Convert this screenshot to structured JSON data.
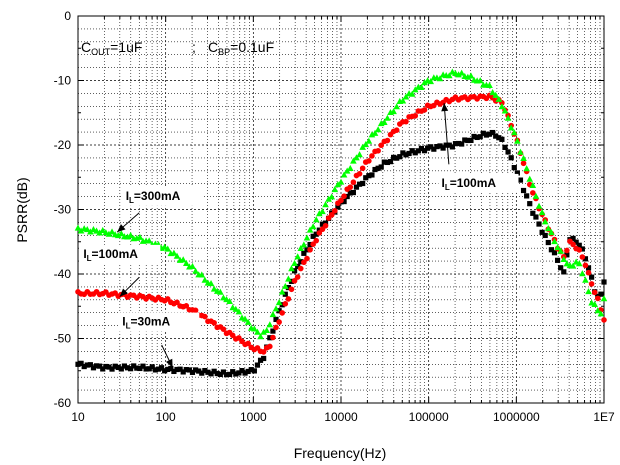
{
  "chart_data": {
    "type": "scatter",
    "xlabel": "Frequency(Hz)",
    "ylabel": "PSRR(dB)",
    "xscale": "log",
    "xlim": [
      10,
      10000000
    ],
    "ylim": [
      -60,
      0
    ],
    "grid": true,
    "x_ticks": [
      {
        "value": 10,
        "label": "10"
      },
      {
        "value": 100,
        "label": "100"
      },
      {
        "value": 1000,
        "label": "1000"
      },
      {
        "value": 10000,
        "label": "10000"
      },
      {
        "value": 100000,
        "label": "100000"
      },
      {
        "value": 1000000,
        "label": "1000000"
      },
      {
        "value": 10000000,
        "label": "1E7"
      }
    ],
    "y_ticks": [
      {
        "value": 0,
        "label": "0"
      },
      {
        "value": -10,
        "label": "-10"
      },
      {
        "value": -20,
        "label": "-20"
      },
      {
        "value": -30,
        "label": "-30"
      },
      {
        "value": -40,
        "label": "-40"
      },
      {
        "value": -50,
        "label": "-50"
      },
      {
        "value": -60,
        "label": "-60"
      }
    ],
    "conditions": {
      "cout": {
        "main": "C",
        "sub": "OUT",
        "value": "=1uF"
      },
      "separator": ";",
      "cbp": {
        "main": "C",
        "sub": "BP",
        "value": "=0.1uF"
      }
    },
    "series": [
      {
        "color": "#000000",
        "marker": "square",
        "points": [
          [
            10,
            -54
          ],
          [
            20,
            -54.5
          ],
          [
            50,
            -54.5
          ],
          [
            100,
            -54.8
          ],
          [
            200,
            -55
          ],
          [
            500,
            -55.5
          ],
          [
            1000,
            -55
          ],
          [
            1300,
            -53
          ],
          [
            1500,
            -50.5
          ],
          [
            2000,
            -45.5
          ],
          [
            3000,
            -39.5
          ],
          [
            5000,
            -34
          ],
          [
            10000,
            -29
          ],
          [
            20000,
            -25
          ],
          [
            30000,
            -23
          ],
          [
            50000,
            -21.5
          ],
          [
            100000,
            -20.5
          ],
          [
            200000,
            -20
          ],
          [
            400000,
            -18.5
          ],
          [
            500000,
            -18.2
          ],
          [
            600000,
            -18.5
          ],
          [
            700000,
            -19.5
          ],
          [
            800000,
            -21
          ],
          [
            1000000,
            -24
          ],
          [
            1500000,
            -30
          ],
          [
            2000000,
            -33.5
          ],
          [
            3000000,
            -38
          ],
          [
            3500000,
            -40
          ],
          [
            4000000,
            -34.5
          ],
          [
            5000000,
            -35
          ],
          [
            6000000,
            -37
          ],
          [
            7000000,
            -40
          ],
          [
            8000000,
            -43
          ],
          [
            9000000,
            -44
          ],
          [
            10000000,
            -41
          ]
        ]
      },
      {
        "color": "#ff0000",
        "marker": "circle",
        "points": [
          [
            10,
            -43
          ],
          [
            20,
            -43
          ],
          [
            50,
            -43.5
          ],
          [
            100,
            -44
          ],
          [
            200,
            -45.5
          ],
          [
            500,
            -49
          ],
          [
            1000,
            -51.5
          ],
          [
            1300,
            -52
          ],
          [
            1500,
            -51.5
          ],
          [
            2000,
            -47
          ],
          [
            3000,
            -41
          ],
          [
            5000,
            -35
          ],
          [
            10000,
            -28.5
          ],
          [
            20000,
            -22.5
          ],
          [
            50000,
            -16.5
          ],
          [
            100000,
            -14
          ],
          [
            200000,
            -12.8
          ],
          [
            500000,
            -12.5
          ],
          [
            700000,
            -13.5
          ],
          [
            1000000,
            -19
          ],
          [
            1500000,
            -27
          ],
          [
            2000000,
            -31
          ],
          [
            3000000,
            -36
          ],
          [
            3500000,
            -37.5
          ],
          [
            4000000,
            -35
          ],
          [
            5000000,
            -36
          ],
          [
            6000000,
            -38
          ],
          [
            7000000,
            -41
          ],
          [
            8000000,
            -43
          ],
          [
            9000000,
            -45
          ],
          [
            10000000,
            -47
          ]
        ]
      },
      {
        "color": "#00ff00",
        "marker": "triangle",
        "points": [
          [
            10,
            -33
          ],
          [
            20,
            -33.5
          ],
          [
            50,
            -34.5
          ],
          [
            100,
            -36
          ],
          [
            200,
            -39
          ],
          [
            500,
            -44
          ],
          [
            1000,
            -48.5
          ],
          [
            1200,
            -49.5
          ],
          [
            1400,
            -49
          ],
          [
            2000,
            -44
          ],
          [
            3000,
            -38
          ],
          [
            5000,
            -32
          ],
          [
            10000,
            -25.5
          ],
          [
            20000,
            -19.5
          ],
          [
            50000,
            -13
          ],
          [
            100000,
            -10
          ],
          [
            200000,
            -8.8
          ],
          [
            300000,
            -9.5
          ],
          [
            500000,
            -11
          ],
          [
            700000,
            -14
          ],
          [
            1000000,
            -19
          ],
          [
            1500000,
            -26
          ],
          [
            2000000,
            -31
          ],
          [
            3000000,
            -36
          ],
          [
            4000000,
            -39
          ],
          [
            5000000,
            -38
          ],
          [
            6000000,
            -40.5
          ],
          [
            7000000,
            -44
          ],
          [
            8000000,
            -45
          ],
          [
            9000000,
            -46.5
          ],
          [
            10000000,
            -44
          ]
        ]
      }
    ],
    "annotations": [
      {
        "main": "I",
        "sub": "L",
        "value": "=300mA",
        "text_at": [
          35,
          -28.5
        ],
        "arrow_from": [
          50,
          -30.5
        ],
        "arrow_to": [
          28,
          -33.5
        ]
      },
      {
        "main": "I",
        "sub": "L",
        "value": "=100mA",
        "text_at": [
          11.5,
          -37.5
        ],
        "arrow_from": [
          50,
          -40.5
        ],
        "arrow_to": [
          30,
          -43.5
        ]
      },
      {
        "main": "I",
        "sub": "L",
        "value": "=30mA",
        "text_at": [
          32,
          -48
        ],
        "arrow_from": [
          90,
          -51
        ],
        "arrow_to": [
          120,
          -54.5
        ]
      },
      {
        "main": "I",
        "sub": "L",
        "value": "=100mA",
        "text_at": [
          140000,
          -26.5
        ],
        "arrow_from": [
          170000,
          -23
        ],
        "arrow_to": [
          150000,
          -13.5
        ]
      }
    ]
  }
}
